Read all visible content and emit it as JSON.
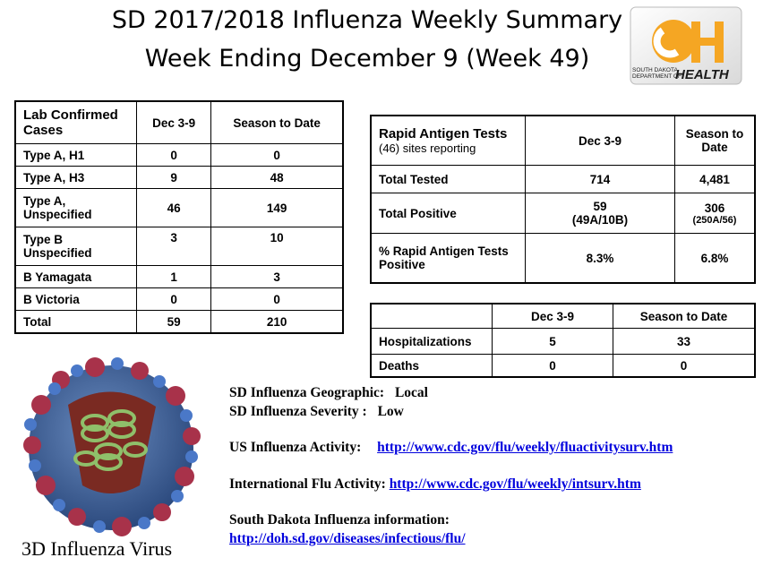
{
  "header": {
    "title_line1": "SD 2017/2018 Influenza Weekly Summary",
    "title_line2": "Week Ending December 9 (Week 49)"
  },
  "logo": {
    "text_line1": "SOUTH DAKOTA",
    "text_line2": "DEPARTMENT OF",
    "text_health": "HEALTH",
    "colors": {
      "orange": "#f5a623",
      "dark": "#1a1a1a"
    }
  },
  "lab_table": {
    "headers": [
      "Lab Confirmed Cases",
      "Dec 3-9",
      "Season to Date"
    ],
    "rows": [
      [
        "Type A, H1",
        "0",
        "0"
      ],
      [
        "Type A, H3",
        "9",
        "48"
      ],
      [
        "Type A, Unspecified",
        "46",
        "149"
      ],
      [
        "Type B Unspecified",
        "3",
        "10"
      ],
      [
        "B Yamagata",
        "1",
        "3"
      ],
      [
        "B Victoria",
        "0",
        "0"
      ],
      [
        "Total",
        "59",
        "210"
      ]
    ]
  },
  "rapid_table": {
    "title": "Rapid Antigen Tests",
    "subtitle": "(46) sites reporting",
    "col2": "Dec 3-9",
    "col3": "Season to Date",
    "rows": [
      {
        "label": "Total Tested",
        "week": "714",
        "week_sub": "",
        "season": "4,481",
        "season_sub": ""
      },
      {
        "label": "Total Positive",
        "week": "59",
        "week_sub": "(49A/10B)",
        "season": "306",
        "season_sub": "(250A/56)"
      },
      {
        "label": "% Rapid Antigen Tests Positive",
        "week": "8.3%",
        "week_sub": "",
        "season": "6.8%",
        "season_sub": ""
      }
    ]
  },
  "hosp_table": {
    "headers": [
      "",
      "Dec 3-9",
      "Season to Date"
    ],
    "rows": [
      [
        "Hospitalizations",
        "5",
        "33"
      ],
      [
        "Deaths",
        "0",
        "0"
      ]
    ]
  },
  "info": {
    "geo_label": "SD Influenza Geographic:",
    "geo_value": "Local",
    "sev_label": "SD Influenza Severity :",
    "sev_value": "Low",
    "us_label": "US Influenza Activity:",
    "us_link": "http://www.cdc.gov/flu/weekly/fluactivitysurv.htm",
    "intl_label": "International Flu Activity:",
    "intl_link": "http://www.cdc.gov/flu/weekly/intsurv.htm",
    "sd_label": "South Dakota Influenza information:",
    "sd_link": "http://doh.sd.gov/diseases/infectious/flu/"
  },
  "virus_caption": "3D Influenza Virus"
}
